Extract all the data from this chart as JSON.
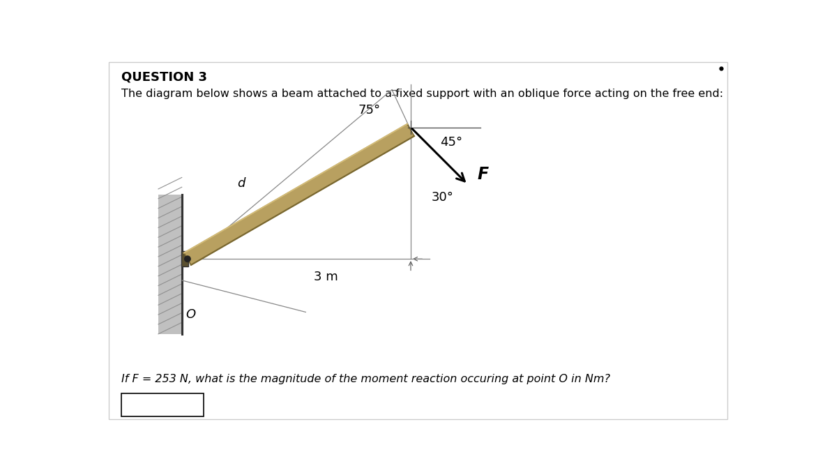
{
  "title": "QUESTION 3",
  "description": "The diagram below shows a beam attached to a fixed support with an oblique force acting on the free end:",
  "question": "If F = 253 N, what is the magnitude of the moment reaction occuring at point O in Nm?",
  "background_color": "#ffffff",
  "beam_color_main": "#b8a060",
  "beam_color_dark": "#7a6830",
  "beam_color_light": "#d4bc78",
  "wall_color": "#b8b8b8",
  "wall_hatch_color": "#888888",
  "angle_75_label": "75°",
  "angle_30_label": "30°",
  "angle_45_label": "45°",
  "length_label": "3 m",
  "force_label": "F",
  "d_label": "d",
  "O_label": "O",
  "line_color": "#555555",
  "thin_line_color": "#888888"
}
